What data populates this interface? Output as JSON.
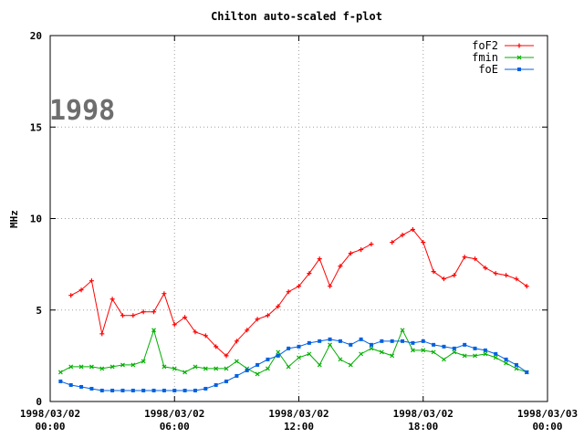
{
  "chart_data": {
    "type": "line",
    "title": "Chilton auto-scaled f-plot",
    "ylabel": "MHz",
    "xlabel": "",
    "annotation": "1998",
    "ylim": [
      0,
      20
    ],
    "yticks": [
      0,
      5,
      10,
      15,
      20
    ],
    "xlim": [
      0,
      24
    ],
    "xticks": [
      {
        "x": 0,
        "date": "1998/03/02",
        "time": "00:00"
      },
      {
        "x": 6,
        "date": "1998/03/02",
        "time": "06:00"
      },
      {
        "x": 12,
        "date": "1998/03/02",
        "time": "12:00"
      },
      {
        "x": 18,
        "date": "1998/03/02",
        "time": "18:00"
      },
      {
        "x": 24,
        "date": "1998/03/03",
        "time": "00:00"
      }
    ],
    "grid": true,
    "legend_position": "top-right",
    "x": [
      0.5,
      1,
      1.5,
      2,
      2.5,
      3,
      3.5,
      4,
      4.5,
      5,
      5.5,
      6,
      6.5,
      7,
      7.5,
      8,
      8.5,
      9,
      9.5,
      10,
      10.5,
      11,
      11.5,
      12,
      12.5,
      13,
      13.5,
      14,
      14.5,
      15,
      15.5,
      16,
      16.5,
      17,
      17.5,
      18,
      18.5,
      19,
      19.5,
      20,
      20.5,
      21,
      21.5,
      22,
      22.5,
      23
    ],
    "series": [
      {
        "name": "foF2",
        "color": "#ff0000",
        "marker": "plus",
        "values": [
          null,
          5.8,
          6.1,
          6.6,
          3.7,
          5.6,
          4.7,
          4.7,
          4.9,
          4.9,
          5.9,
          4.2,
          4.6,
          3.8,
          3.6,
          3.0,
          2.5,
          3.3,
          3.9,
          4.5,
          4.7,
          5.2,
          6.0,
          6.3,
          7.0,
          7.8,
          6.3,
          7.4,
          8.1,
          8.3,
          8.6,
          null,
          8.7,
          9.1,
          9.4,
          8.7,
          7.1,
          6.7,
          6.9,
          7.9,
          7.8,
          7.3,
          7.0,
          6.9,
          6.7,
          6.3
        ]
      },
      {
        "name": "fmin",
        "color": "#00b000",
        "marker": "cross",
        "values": [
          1.6,
          1.9,
          1.9,
          1.9,
          1.8,
          1.9,
          2.0,
          2.0,
          2.2,
          3.9,
          1.9,
          1.8,
          1.6,
          1.9,
          1.8,
          1.8,
          1.8,
          2.2,
          1.8,
          1.5,
          1.8,
          2.7,
          1.9,
          2.4,
          2.6,
          2.0,
          3.1,
          2.3,
          2.0,
          2.6,
          2.9,
          2.7,
          2.5,
          3.9,
          2.8,
          2.8,
          2.7,
          2.3,
          2.7,
          2.5,
          2.5,
          2.6,
          2.4,
          2.1,
          1.8,
          1.6
        ]
      },
      {
        "name": "foE",
        "color": "#0060e0",
        "marker": "square",
        "values": [
          1.1,
          0.9,
          0.8,
          0.7,
          0.6,
          0.6,
          0.6,
          0.6,
          0.6,
          0.6,
          0.6,
          0.6,
          0.6,
          0.6,
          0.7,
          0.9,
          1.1,
          1.4,
          1.7,
          2.0,
          2.3,
          2.5,
          2.9,
          3.0,
          3.2,
          3.3,
          3.4,
          3.3,
          3.1,
          3.4,
          3.1,
          3.3,
          3.3,
          3.3,
          3.2,
          3.3,
          3.1,
          3.0,
          2.9,
          3.1,
          2.9,
          2.8,
          2.6,
          2.3,
          2.0,
          1.6
        ]
      }
    ]
  }
}
